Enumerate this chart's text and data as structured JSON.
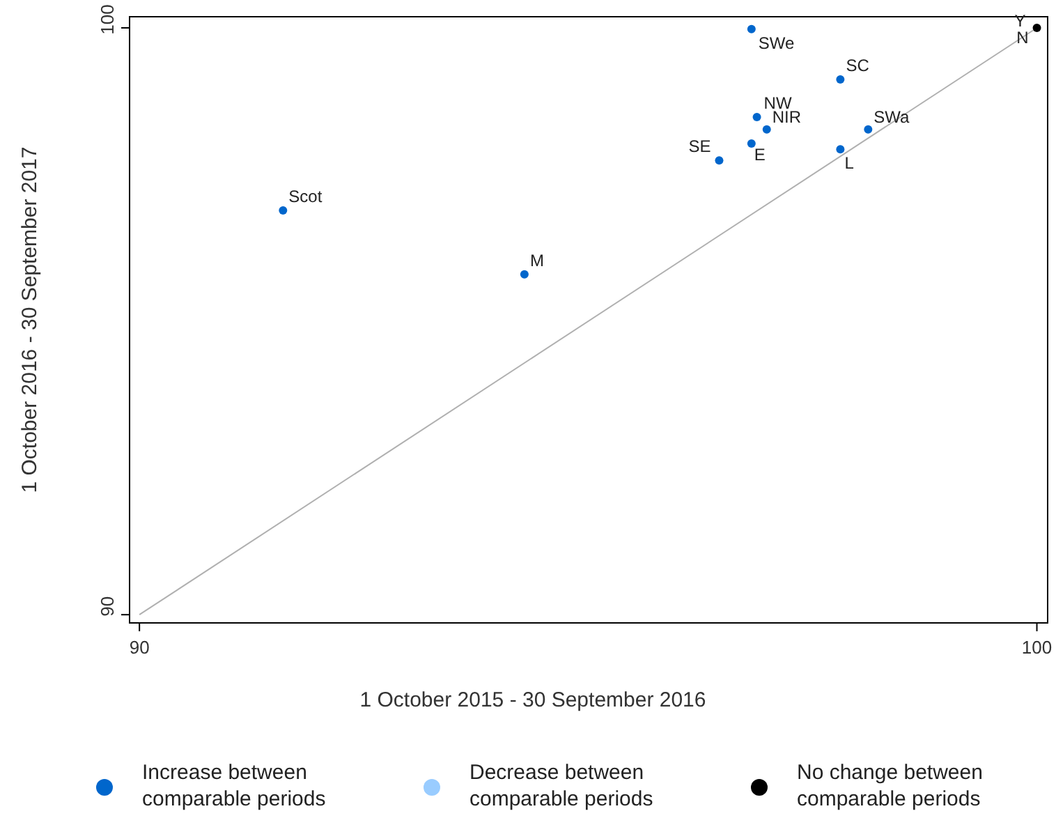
{
  "chart_data": {
    "type": "scatter",
    "xlabel": "1 October 2015 - 30 September 2016",
    "ylabel": "1 October 2016 - 30 September 2017",
    "xlim": [
      89.89,
      100.12
    ],
    "ylim": [
      89.86,
      100.19
    ],
    "xticks": [
      90,
      100
    ],
    "yticks": [
      90,
      100
    ],
    "grid": false,
    "legend": "bottom",
    "marker": "circle",
    "series": [
      {
        "name": "Increase between comparable periods",
        "color": "#0066cc",
        "x": [
          96.82,
          97.81,
          96.88,
          96.99,
          98.12,
          96.46,
          96.82,
          97.81,
          91.6,
          94.29
        ],
        "values": [
          99.98,
          99.12,
          98.48,
          98.27,
          98.27,
          97.74,
          98.03,
          97.93,
          96.89,
          95.8
        ]
      },
      {
        "name": "Decrease between comparable periods",
        "color": "#99ccff"
      },
      {
        "name": "No change between comparable periods",
        "color": "#000000",
        "x": [
          100
        ],
        "values": [
          100
        ]
      },
      {
        "type": "line",
        "color": "#b0b0b0",
        "x": [
          90,
          100
        ],
        "values": [
          90,
          100
        ],
        "marker": "none"
      }
    ],
    "annotations": [
      {
        "text": "SWe",
        "x": 96.82,
        "y": 99.98
      },
      {
        "text": "SC",
        "x": 97.81,
        "y": 99.12
      },
      {
        "text": "NW",
        "x": 96.88,
        "y": 98.48
      },
      {
        "text": "NIR",
        "x": 96.99,
        "y": 98.27
      },
      {
        "text": "SWa",
        "x": 98.12,
        "y": 98.27
      },
      {
        "text": "SE",
        "x": 96.46,
        "y": 97.74
      },
      {
        "text": "E",
        "x": 96.82,
        "y": 98.03
      },
      {
        "text": "L",
        "x": 97.81,
        "y": 97.93
      },
      {
        "text": "Scot",
        "x": 91.6,
        "y": 96.89
      },
      {
        "text": "M",
        "x": 94.29,
        "y": 95.8
      },
      {
        "text": "Y",
        "x": 100,
        "y": 100
      },
      {
        "text": "N",
        "x": 100,
        "y": 100
      }
    ]
  }
}
